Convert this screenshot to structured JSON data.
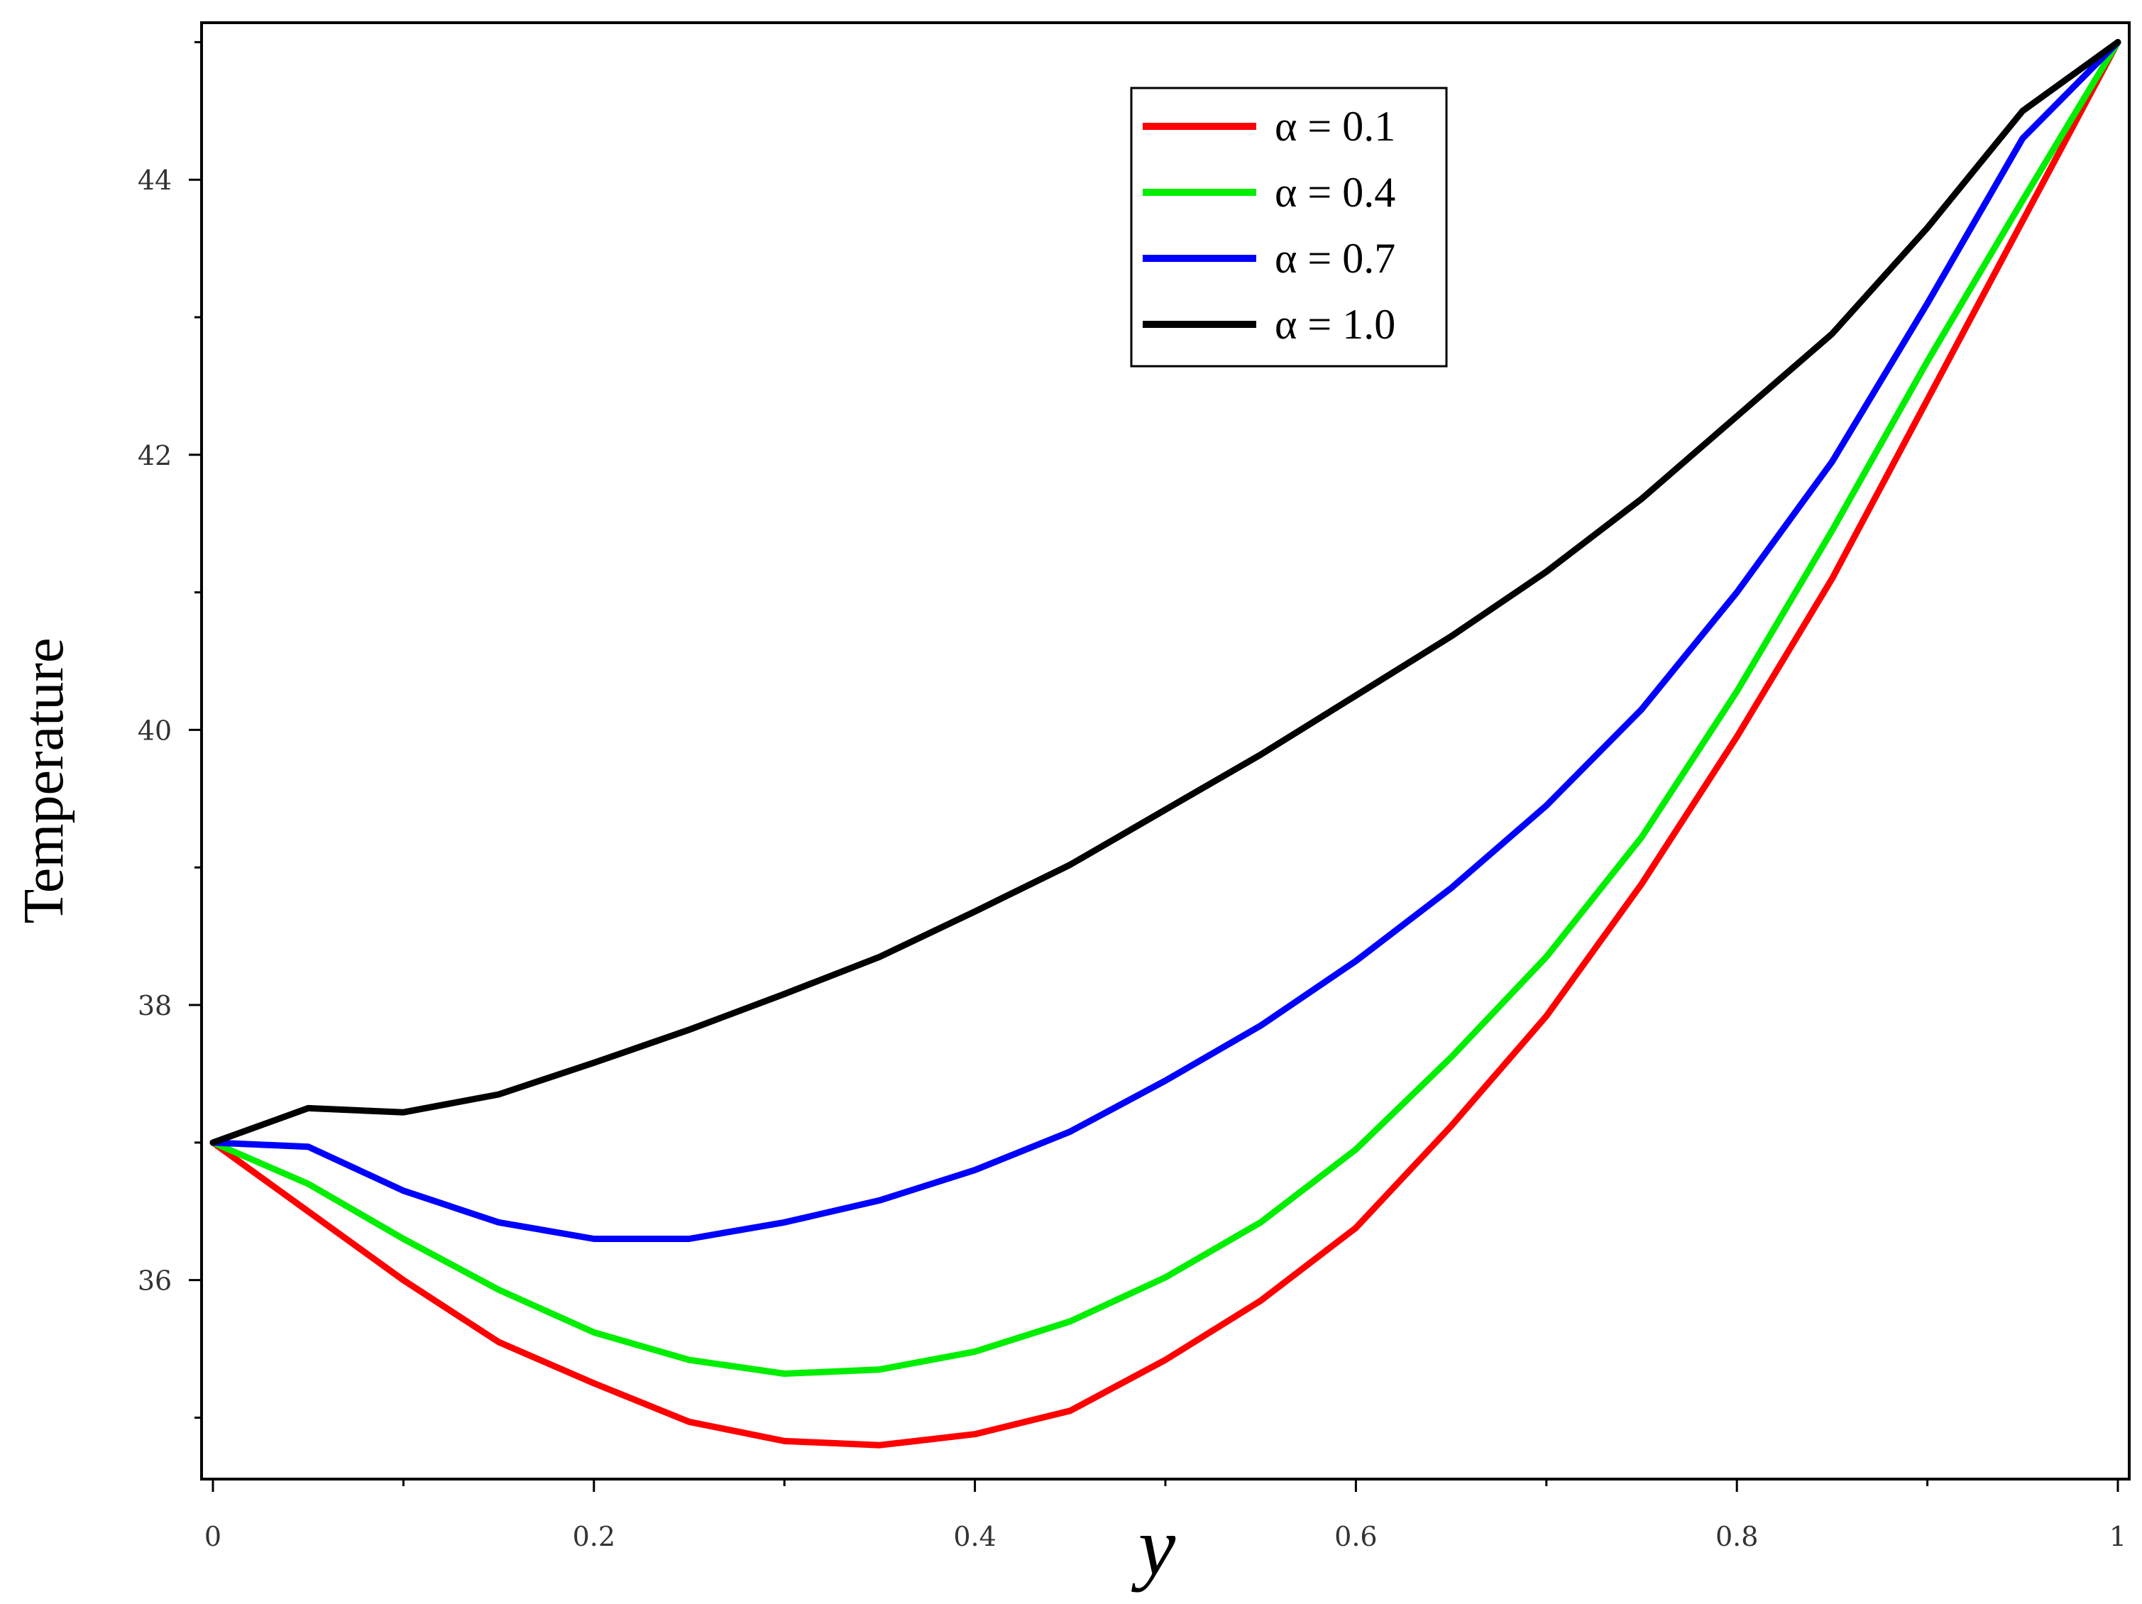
{
  "chart_data": {
    "type": "line",
    "title": "",
    "xlabel": "y",
    "ylabel": "Temperature",
    "xlim": [
      0,
      1
    ],
    "ylim": [
      34.6,
      45.1
    ],
    "xticks": [
      {
        "value": 0,
        "label": "0"
      },
      {
        "value": 0.2,
        "label": "0.2"
      },
      {
        "value": 0.4,
        "label": "0.4"
      },
      {
        "value": 0.6,
        "label": "0.6"
      },
      {
        "value": 0.8,
        "label": "0.8"
      },
      {
        "value": 1,
        "label": "1"
      }
    ],
    "yticks": [
      {
        "value": 36,
        "label": "36"
      },
      {
        "value": 38,
        "label": "38"
      },
      {
        "value": 40,
        "label": "40"
      },
      {
        "value": 42,
        "label": "42"
      },
      {
        "value": 44,
        "label": "44"
      }
    ],
    "grid": false,
    "legend_position": "top-right",
    "series": [
      {
        "name": "α = 0.1",
        "color": "#ff0000",
        "x": [
          0,
          0.05,
          0.1,
          0.15,
          0.2,
          0.25,
          0.3,
          0.35,
          0.4,
          0.45,
          0.5,
          0.55,
          0.6,
          0.65,
          0.7,
          0.75,
          0.8,
          0.85,
          0.9,
          0.95,
          1.0
        ],
        "y": [
          37.0,
          36.5,
          36.0,
          35.55,
          35.25,
          34.97,
          34.83,
          34.8,
          34.88,
          35.05,
          35.42,
          35.85,
          36.38,
          37.12,
          37.92,
          38.88,
          39.95,
          41.1,
          42.4,
          43.7,
          45.0
        ]
      },
      {
        "name": "α = 0.4",
        "color": "#00ee00",
        "x": [
          0,
          0.05,
          0.1,
          0.15,
          0.2,
          0.25,
          0.3,
          0.35,
          0.4,
          0.45,
          0.5,
          0.55,
          0.6,
          0.65,
          0.7,
          0.75,
          0.8,
          0.85,
          0.9,
          0.95,
          1.0
        ],
        "y": [
          37.0,
          36.7,
          36.3,
          35.93,
          35.62,
          35.42,
          35.32,
          35.35,
          35.48,
          35.7,
          36.02,
          36.42,
          36.95,
          37.62,
          38.35,
          39.22,
          40.28,
          41.45,
          42.68,
          43.85,
          45.0
        ]
      },
      {
        "name": "α = 0.7",
        "color": "#0000ff",
        "x": [
          0,
          0.05,
          0.1,
          0.15,
          0.2,
          0.25,
          0.3,
          0.35,
          0.4,
          0.45,
          0.5,
          0.55,
          0.6,
          0.65,
          0.7,
          0.75,
          0.8,
          0.85,
          0.9,
          0.95,
          1.0
        ],
        "y": [
          37.0,
          36.97,
          36.65,
          36.42,
          36.3,
          36.3,
          36.42,
          36.58,
          36.8,
          37.08,
          37.45,
          37.85,
          38.32,
          38.85,
          39.45,
          40.15,
          41.0,
          41.95,
          43.1,
          44.3,
          45.0
        ]
      },
      {
        "name": "α = 1.0",
        "color": "#000000",
        "x": [
          0,
          0.05,
          0.1,
          0.15,
          0.2,
          0.25,
          0.3,
          0.35,
          0.4,
          0.45,
          0.5,
          0.55,
          0.6,
          0.65,
          0.7,
          0.75,
          0.8,
          0.85,
          0.9,
          0.95,
          1.0
        ],
        "y": [
          37.0,
          37.25,
          37.22,
          37.35,
          37.58,
          37.82,
          38.08,
          38.35,
          38.68,
          39.02,
          39.42,
          39.82,
          40.25,
          40.68,
          41.15,
          41.68,
          42.28,
          42.88,
          43.65,
          44.5,
          45.0
        ]
      }
    ]
  }
}
